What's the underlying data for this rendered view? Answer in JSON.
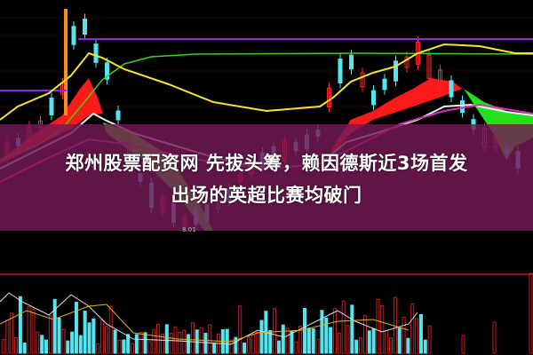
{
  "headline": {
    "line1": "郑州股票配资网 先拔头筹，赖因德斯近3场首发",
    "line2": "出场的英超比赛均破门"
  },
  "chart": {
    "low_price_label": "8.01"
  },
  "colors": {
    "overlay": "#761856",
    "up": "#ff2a2a",
    "down": "#54e6f0",
    "ma_yellow": "#f5e62a",
    "ma_green": "#3ecf1e",
    "ma_purple": "#8a2be2"
  }
}
